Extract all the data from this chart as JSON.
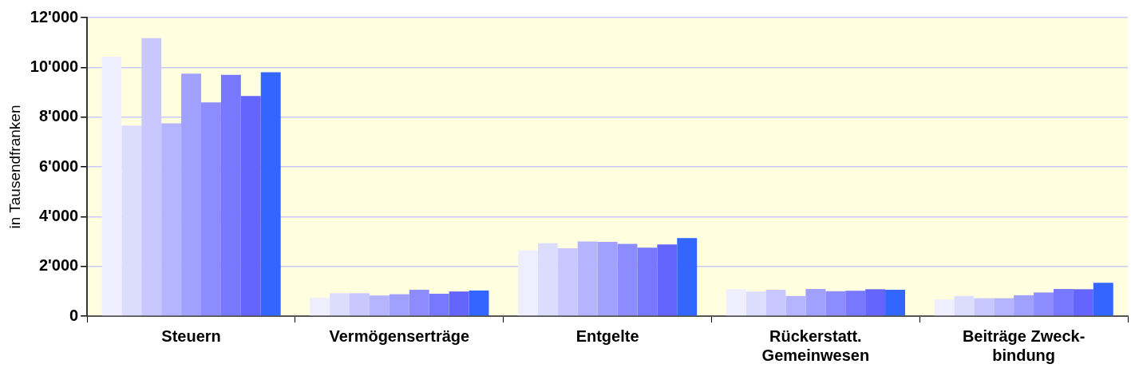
{
  "chart_data": {
    "type": "bar",
    "categories": [
      "Steuern",
      "Vermögenserträge",
      "Entgelte",
      "Rückerstatt. Gemeinwesen",
      "Beiträge Zweck-bindung"
    ],
    "ylabel": "in Tausendfranken",
    "ylim": [
      0,
      12000
    ],
    "yticks": [
      {
        "value": 0,
        "label": "0"
      },
      {
        "value": 2000,
        "label": "2'000"
      },
      {
        "value": 4000,
        "label": "4'000"
      },
      {
        "value": 6000,
        "label": "6'000"
      },
      {
        "value": 8000,
        "label": "8'000"
      },
      {
        "value": 10000,
        "label": "10'000"
      },
      {
        "value": 12000,
        "label": "12'000"
      }
    ],
    "grid": "y",
    "legend": false,
    "series": [
      {
        "color": "#eeeeff",
        "values": [
          10430,
          740,
          2650,
          1080,
          670
        ]
      },
      {
        "color": "#dcdcff",
        "values": [
          7660,
          920,
          2930,
          990,
          810
        ]
      },
      {
        "color": "#c8c8ff",
        "values": [
          11170,
          920,
          2730,
          1060,
          720
        ]
      },
      {
        "color": "#b4b4ff",
        "values": [
          7750,
          830,
          3000,
          810,
          720
        ]
      },
      {
        "color": "#a0a0ff",
        "values": [
          9750,
          880,
          2980,
          1090,
          840
        ]
      },
      {
        "color": "#8c8cff",
        "values": [
          8590,
          1060,
          2900,
          1000,
          950
        ]
      },
      {
        "color": "#7878ff",
        "values": [
          9700,
          900,
          2750,
          1020,
          1090
        ]
      },
      {
        "color": "#6464ff",
        "values": [
          8850,
          990,
          2880,
          1080,
          1080
        ]
      },
      {
        "color": "#3366ff",
        "values": [
          9800,
          1030,
          3140,
          1060,
          1340
        ]
      }
    ]
  }
}
